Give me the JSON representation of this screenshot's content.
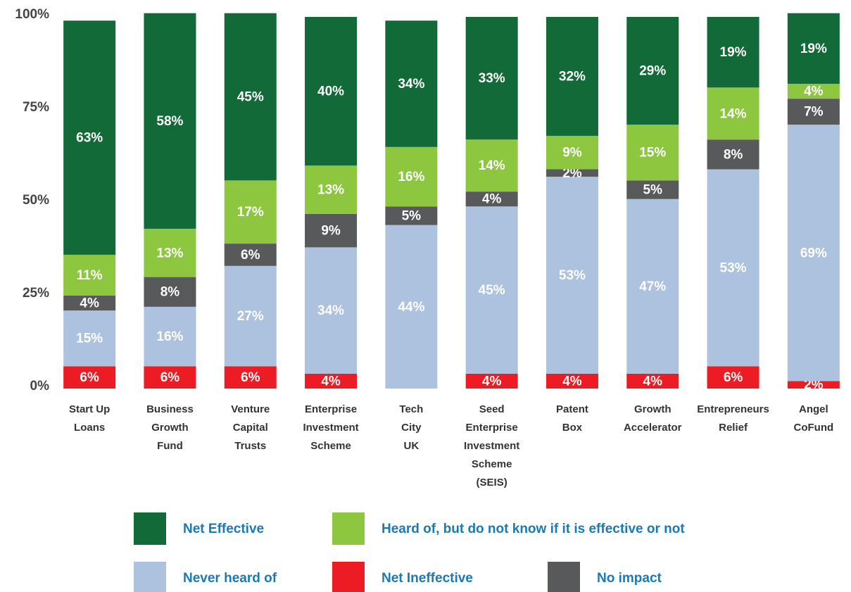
{
  "chart_data": {
    "type": "stacked_bar",
    "categories": [
      "Start Up\nLoans",
      "Business\nGrowth\nFund",
      "Venture\nCapital\nTrusts",
      "Enterprise\nInvestment\nScheme",
      "Tech\nCity\nUK",
      "Seed\nEnterprise\nInvestment\nScheme\n(SEIS)",
      "Patent\nBox",
      "Growth\nAccelerator",
      "Entrepreneurs\nRelief",
      "Angel\nCoFund"
    ],
    "series": [
      {
        "name": "Net Ineffective",
        "color": "#ed1c24",
        "values": [
          6,
          6,
          6,
          4,
          null,
          4,
          4,
          4,
          6,
          2
        ],
        "value_labels": [
          "6%",
          "6%",
          "6%",
          "4%",
          null,
          "4%",
          "4%",
          "4%",
          "6%",
          "2%"
        ]
      },
      {
        "name": "Never heard of",
        "color": "#adc2de",
        "values": [
          15,
          16,
          27,
          34,
          44,
          45,
          53,
          47,
          53,
          69
        ],
        "value_labels": [
          "15%",
          "16%",
          "27%",
          "34%",
          "44%",
          "45%",
          "53%",
          "47%",
          "53%",
          "69%"
        ]
      },
      {
        "name": "No impact",
        "color": "#58595b",
        "values": [
          4,
          8,
          6,
          9,
          5,
          4,
          2,
          5,
          8,
          7
        ],
        "value_labels": [
          "4%",
          "8%",
          "6%",
          "9%",
          "5%",
          "4%",
          "2%",
          "5%",
          "8%",
          "7%"
        ]
      },
      {
        "name": "Heard of, but do not know if it is effective or not",
        "color": "#8dc63f",
        "values": [
          11,
          13,
          17,
          13,
          16,
          14,
          9,
          15,
          14,
          4
        ],
        "value_labels": [
          "11%",
          "13%",
          "17%",
          "13%",
          "16%",
          "14%",
          "9%",
          "15%",
          "14%",
          "4%"
        ]
      },
      {
        "name": "Net Effective",
        "color": "#116a38",
        "values": [
          63,
          58,
          45,
          40,
          34,
          33,
          32,
          29,
          19,
          19
        ],
        "value_labels": [
          "63%",
          "58%",
          "45%",
          "40%",
          "34%",
          "33%",
          "32%",
          "29%",
          "19%",
          "19%"
        ]
      }
    ],
    "ylim": [
      0,
      100
    ],
    "yticks": [
      {
        "value": 0,
        "label": "0%"
      },
      {
        "value": 25,
        "label": "25%"
      },
      {
        "value": 50,
        "label": "50%"
      },
      {
        "value": 75,
        "label": "75%"
      },
      {
        "value": 100,
        "label": "100%"
      }
    ],
    "grid": false
  }
}
